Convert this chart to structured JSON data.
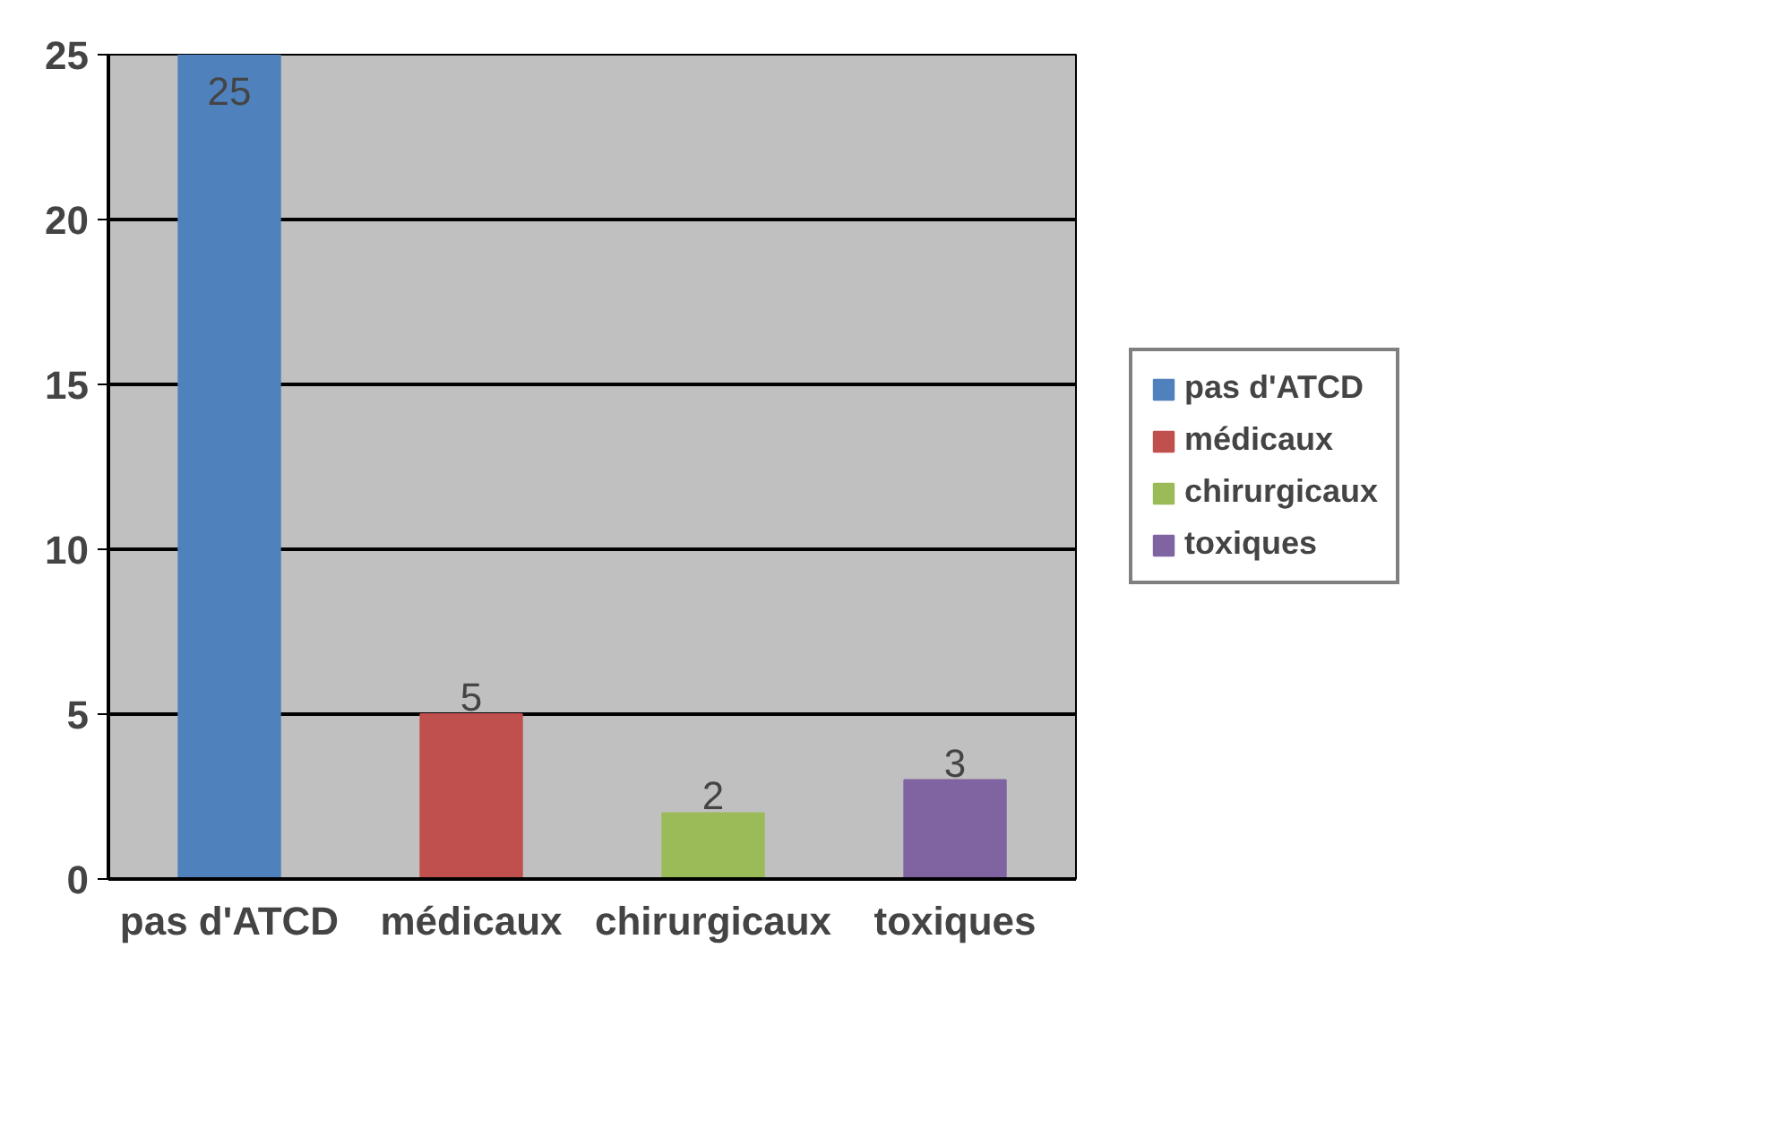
{
  "chart_data": {
    "type": "bar",
    "categories": [
      "pas d'ATCD",
      "médicaux",
      "chirurgicaux",
      "toxiques"
    ],
    "series": [
      {
        "name": "pas d'ATCD",
        "color": "#4f81bd",
        "values": [
          25,
          null,
          null,
          null
        ]
      },
      {
        "name": "médicaux",
        "color": "#c0504d",
        "values": [
          null,
          5,
          null,
          null
        ]
      },
      {
        "name": "chirurgicaux",
        "color": "#9bbb59",
        "values": [
          null,
          null,
          2,
          null
        ]
      },
      {
        "name": "toxiques",
        "color": "#8064a2",
        "values": [
          null,
          null,
          null,
          3
        ]
      }
    ],
    "ylim": [
      0,
      25
    ],
    "yticks": [
      0,
      5,
      10,
      15,
      20,
      25
    ],
    "grid": "y",
    "legend": "right",
    "data_labels": true
  }
}
